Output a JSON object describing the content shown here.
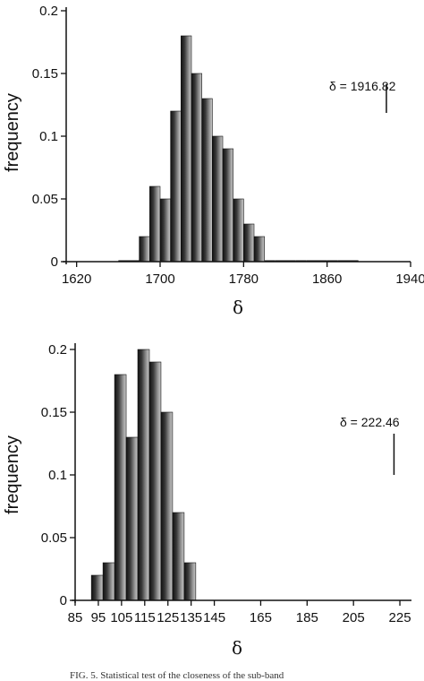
{
  "chart_data": [
    {
      "type": "bar",
      "title": "",
      "xlabel": "δ",
      "ylabel": "frequency",
      "xlim": [
        1610,
        1940
      ],
      "ylim": [
        0,
        0.2
      ],
      "x_ticks": [
        "1620",
        "1700",
        "1780",
        "1860",
        "1940"
      ],
      "x_tick_values": [
        1620,
        1700,
        1780,
        1860,
        1940
      ],
      "y_ticks": [
        "0",
        "0.05",
        "0.1",
        "0.15",
        "0.2"
      ],
      "y_tick_values": [
        0,
        0.05,
        0.1,
        0.15,
        0.2
      ],
      "bin_width": 10,
      "bin_starts": [
        1660,
        1670,
        1680,
        1690,
        1700,
        1710,
        1720,
        1730,
        1740,
        1750,
        1760,
        1770,
        1780,
        1790,
        1800,
        1810,
        1820,
        1830,
        1840,
        1850,
        1860,
        1870,
        1880
      ],
      "values": [
        0.0,
        0.0,
        0.02,
        0.06,
        0.05,
        0.12,
        0.18,
        0.15,
        0.13,
        0.1,
        0.09,
        0.05,
        0.03,
        0.02,
        0.0,
        0.0,
        0.0,
        0.0,
        0.0,
        0.0,
        0.0,
        0.0,
        0.0
      ],
      "annotation": {
        "text": "δ = 1916.82",
        "x": 1916.82
      }
    },
    {
      "type": "bar",
      "title": "",
      "xlabel": "δ",
      "ylabel": "frequency",
      "xlim": [
        85,
        230
      ],
      "ylim": [
        0,
        0.2
      ],
      "x_ticks": [
        "85",
        "95",
        "105",
        "115",
        "125",
        "135",
        "145",
        "165",
        "185",
        "205",
        "225"
      ],
      "x_tick_values": [
        85,
        95,
        105,
        115,
        125,
        135,
        145,
        165,
        185,
        205,
        225
      ],
      "y_ticks": [
        "0",
        "0.05",
        "0.1",
        "0.15",
        "0.2"
      ],
      "y_tick_values": [
        0,
        0.05,
        0.1,
        0.15,
        0.2
      ],
      "bin_width": 5,
      "bin_starts": [
        92,
        97,
        102,
        107,
        112,
        117,
        122,
        127,
        132
      ],
      "values": [
        0.02,
        0.03,
        0.18,
        0.13,
        0.2,
        0.19,
        0.15,
        0.07,
        0.03
      ],
      "annotation": {
        "text": "δ = 222.46",
        "x": 222.46
      }
    }
  ],
  "caption": "FIG. 5. Statistical test of the closeness of the sub-band"
}
